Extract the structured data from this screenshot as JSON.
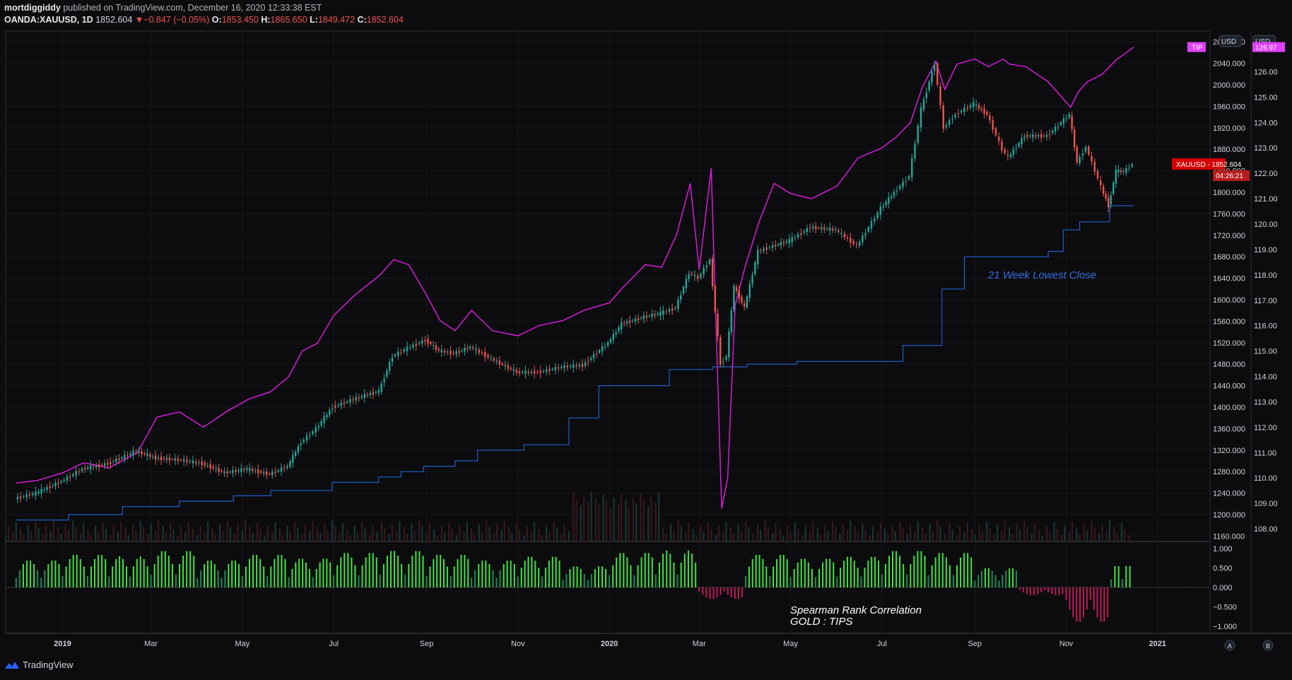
{
  "header": {
    "publisher": "mortdiggiddy",
    "published_text": "published on TradingView.com, December 16, 2020 12:33:38 EST",
    "symbol": "OANDA:XAUUSD, 1D",
    "last": "1852.604",
    "arrow": "▼",
    "change": "−0.847 (−0.05%)",
    "o_label": "O:",
    "o": "1853.450",
    "h_label": "H:",
    "h": "1865.650",
    "l_label": "L:",
    "l": "1849.472",
    "c_label": "C:",
    "c": "1852.604"
  },
  "footer": {
    "brand": "TradingView"
  },
  "colors": {
    "background": "#0c0c0e",
    "up": "#26a69a",
    "down": "#ef5350",
    "tip_line": "#d81bd8",
    "lowest_close": "#1e5fc7",
    "osc_pos": "#3fe33f",
    "osc_neg": "#c2185b"
  },
  "chart_data": [
    {
      "type": "line",
      "name": "main",
      "symbol": "XAUUSD",
      "timeframe": "1D",
      "x_ticks": [
        "2019",
        "Mar",
        "May",
        "Jul",
        "Sep",
        "Nov",
        "2020",
        "Mar",
        "May",
        "Jul",
        "Sep",
        "Nov",
        "2021"
      ],
      "left_axis_label": "USD",
      "right_axis_label": "USD",
      "price_axis": [
        "2080.000",
        "2040.000",
        "2000.000",
        "1960.000",
        "1920.000",
        "1880.000",
        "1840.000",
        "1800.000",
        "1760.000",
        "1720.000",
        "1680.000",
        "1640.000",
        "1600.000",
        "1560.000",
        "1520.000",
        "1480.000",
        "1440.000",
        "1400.000",
        "1360.000",
        "1320.000",
        "1280.000",
        "1240.000",
        "1200.000",
        "1160.000"
      ],
      "tip_axis": [
        "127.00",
        "126.00",
        "125.00",
        "124.00",
        "123.00",
        "122.00",
        "121.00",
        "120.00",
        "119.00",
        "118.00",
        "117.00",
        "116.00",
        "115.00",
        "114.00",
        "113.00",
        "112.00",
        "111.00",
        "110.00",
        "109.00",
        "108.00"
      ],
      "price_range": [
        1150,
        2100
      ],
      "tip_range": [
        107.5,
        127.6
      ],
      "price_label": "XAUUSD",
      "price_value": "1852.604",
      "countdown": "04:26:21",
      "tip_label": "TIP",
      "tip_value": "126.97",
      "annotation": "21 Week Lowest Close",
      "series": [
        {
          "name": "XAUUSD",
          "style": "candles",
          "x": [
            "2018-12-01",
            "2018-12-15",
            "2019-01-01",
            "2019-01-15",
            "2019-02-01",
            "2019-02-20",
            "2019-03-05",
            "2019-03-20",
            "2019-04-05",
            "2019-04-20",
            "2019-05-05",
            "2019-05-20",
            "2019-06-01",
            "2019-06-10",
            "2019-06-20",
            "2019-07-01",
            "2019-07-15",
            "2019-08-01",
            "2019-08-10",
            "2019-08-20",
            "2019-09-01",
            "2019-09-10",
            "2019-09-20",
            "2019-10-01",
            "2019-10-15",
            "2019-11-01",
            "2019-11-15",
            "2019-12-01",
            "2019-12-15",
            "2020-01-01",
            "2020-01-10",
            "2020-01-25",
            "2020-02-05",
            "2020-02-15",
            "2020-02-24",
            "2020-03-01",
            "2020-03-09",
            "2020-03-16",
            "2020-03-20",
            "2020-03-25",
            "2020-04-01",
            "2020-04-10",
            "2020-04-20",
            "2020-05-01",
            "2020-05-15",
            "2020-06-01",
            "2020-06-15",
            "2020-07-01",
            "2020-07-10",
            "2020-07-20",
            "2020-07-28",
            "2020-08-06",
            "2020-08-12",
            "2020-08-20",
            "2020-09-01",
            "2020-09-10",
            "2020-09-20",
            "2020-09-24",
            "2020-10-05",
            "2020-10-20",
            "2020-11-04",
            "2020-11-09",
            "2020-11-15",
            "2020-11-25",
            "2020-11-30",
            "2020-12-05",
            "2020-12-10",
            "2020-12-16"
          ],
          "values": [
            1230,
            1240,
            1262,
            1285,
            1295,
            1318,
            1305,
            1302,
            1295,
            1278,
            1285,
            1275,
            1290,
            1335,
            1360,
            1400,
            1415,
            1430,
            1495,
            1510,
            1525,
            1505,
            1500,
            1512,
            1490,
            1465,
            1465,
            1475,
            1478,
            1520,
            1555,
            1568,
            1575,
            1585,
            1650,
            1640,
            1675,
            1480,
            1495,
            1625,
            1585,
            1690,
            1700,
            1710,
            1735,
            1730,
            1700,
            1770,
            1800,
            1830,
            1955,
            2040,
            1920,
            1945,
            1965,
            1945,
            1880,
            1865,
            1905,
            1905,
            1945,
            1855,
            1885,
            1810,
            1775,
            1840,
            1838,
            1852.604
          ]
        },
        {
          "name": "TIP",
          "style": "line",
          "x": [
            "2018-12-01",
            "2018-12-15",
            "2019-01-01",
            "2019-01-15",
            "2019-02-01",
            "2019-02-20",
            "2019-03-05",
            "2019-03-20",
            "2019-04-05",
            "2019-04-20",
            "2019-05-05",
            "2019-05-20",
            "2019-06-01",
            "2019-06-10",
            "2019-06-20",
            "2019-07-01",
            "2019-07-15",
            "2019-08-01",
            "2019-08-10",
            "2019-08-20",
            "2019-09-01",
            "2019-09-10",
            "2019-09-20",
            "2019-10-01",
            "2019-10-15",
            "2019-11-01",
            "2019-11-15",
            "2019-12-01",
            "2019-12-15",
            "2020-01-01",
            "2020-01-10",
            "2020-01-25",
            "2020-02-05",
            "2020-02-15",
            "2020-02-24",
            "2020-03-01",
            "2020-03-09",
            "2020-03-16",
            "2020-03-20",
            "2020-03-25",
            "2020-04-01",
            "2020-04-10",
            "2020-04-20",
            "2020-05-01",
            "2020-05-15",
            "2020-06-01",
            "2020-06-15",
            "2020-07-01",
            "2020-07-10",
            "2020-07-20",
            "2020-07-28",
            "2020-08-06",
            "2020-08-12",
            "2020-08-20",
            "2020-09-01",
            "2020-09-10",
            "2020-09-20",
            "2020-09-24",
            "2020-10-05",
            "2020-10-20",
            "2020-11-04",
            "2020-11-09",
            "2020-11-15",
            "2020-11-25",
            "2020-11-30",
            "2020-12-05",
            "2020-12-10",
            "2020-12-16"
          ],
          "values": [
            109.8,
            109.9,
            110.2,
            110.6,
            110.4,
            111.0,
            112.4,
            112.6,
            112.0,
            112.6,
            113.1,
            113.4,
            114.0,
            115.0,
            115.3,
            116.4,
            117.2,
            118.0,
            118.6,
            118.4,
            117.2,
            116.2,
            115.8,
            116.6,
            115.8,
            115.6,
            116.0,
            116.2,
            116.6,
            116.9,
            117.5,
            118.4,
            118.3,
            119.6,
            121.6,
            118.2,
            122.2,
            108.8,
            110.0,
            116.8,
            118.4,
            120.1,
            121.6,
            121.2,
            121.0,
            121.5,
            122.6,
            123.0,
            123.4,
            124.0,
            125.4,
            126.4,
            125.3,
            126.3,
            126.5,
            126.2,
            126.5,
            126.3,
            126.2,
            125.6,
            124.6,
            125.2,
            125.6,
            125.9,
            126.2,
            126.5,
            126.7,
            126.97
          ]
        },
        {
          "name": "21 Week Lowest Close",
          "style": "step",
          "x": [
            "2018-12-01",
            "2019-01-05",
            "2019-02-10",
            "2019-03-20",
            "2019-04-25",
            "2019-05-20",
            "2019-06-30",
            "2019-07-31",
            "2019-08-15",
            "2019-08-30",
            "2019-09-20",
            "2019-10-05",
            "2019-11-05",
            "2019-12-05",
            "2019-12-25",
            "2020-02-10",
            "2020-03-10",
            "2020-04-02",
            "2020-05-05",
            "2020-07-15",
            "2020-08-10",
            "2020-08-25",
            "2020-10-20",
            "2020-10-30",
            "2020-11-10",
            "2020-11-30",
            "2020-12-16"
          ],
          "values": [
            1190,
            1200,
            1215,
            1225,
            1235,
            1245,
            1260,
            1270,
            1280,
            1290,
            1300,
            1320,
            1330,
            1380,
            1440,
            1470,
            1475,
            1480,
            1485,
            1515,
            1620,
            1680,
            1690,
            1730,
            1745,
            1775,
            1775
          ]
        }
      ]
    },
    {
      "type": "bar",
      "name": "Spearman Rank Correlation GOLD : TIPS",
      "title_line1": "Spearman Rank Correlation",
      "title_line2": "GOLD : TIPS",
      "axis": [
        "1.000",
        "0.500",
        "0.000",
        "−0.500",
        "−1.000"
      ],
      "ylim": [
        -1,
        1
      ],
      "x": [
        "2018-12",
        "2019-01",
        "2019-02",
        "2019-03",
        "2019-04",
        "2019-05",
        "2019-06",
        "2019-07",
        "2019-08",
        "2019-09",
        "2019-10",
        "2019-11",
        "2019-12",
        "2020-01",
        "2020-02",
        "2020-03",
        "2020-04",
        "2020-05",
        "2020-06",
        "2020-07",
        "2020-08",
        "2020-09",
        "2020-10",
        "2020-11",
        "2020-12"
      ],
      "values": [
        0.7,
        0.85,
        0.8,
        0.95,
        0.7,
        0.85,
        0.75,
        0.9,
        0.95,
        0.85,
        0.7,
        0.8,
        0.55,
        0.9,
        0.95,
        -0.3,
        0.85,
        0.75,
        0.8,
        0.95,
        0.9,
        0.5,
        -0.2,
        -0.9,
        0.6
      ]
    }
  ]
}
